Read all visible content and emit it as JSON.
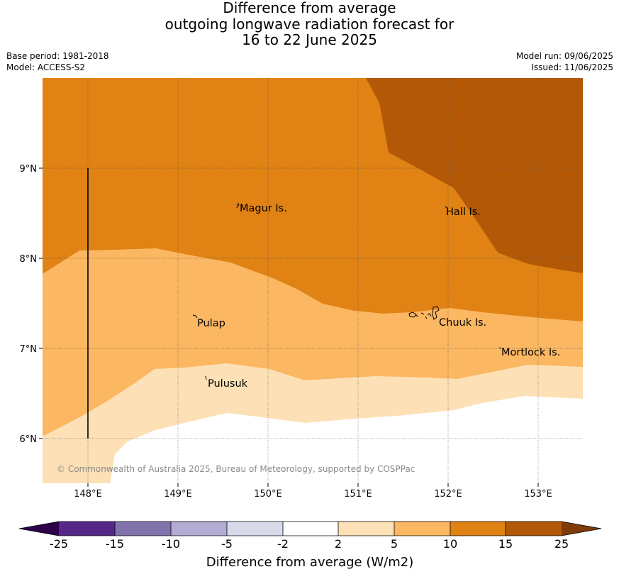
{
  "title": {
    "line1": "Difference from average",
    "line2": "outgoing longwave radiation forecast for",
    "line3": "16 to 22 June 2025"
  },
  "meta_left": {
    "base_period": "Base period: 1981-2018",
    "model": "Model: ACCESS-S2"
  },
  "meta_right": {
    "model_run": "Model run: 09/06/2025",
    "issued": "Issued: 11/06/2025"
  },
  "map": {
    "lon_range": [
      147.5,
      153.5
    ],
    "lat_range": [
      5.5,
      10.0
    ],
    "lon_ticks": [
      "148°E",
      "149°E",
      "150°E",
      "151°E",
      "152°E",
      "153°E"
    ],
    "lat_ticks": [
      "9°N",
      "8°N",
      "7°N",
      "6°N"
    ],
    "grid": true,
    "places": [
      "Magur Is.",
      "Hall Is.",
      "Pulap",
      "Chuuk Is.",
      "Mortlock Is.",
      "Pulusuk"
    ],
    "copyright": "© Commonwealth of Australia 2025, Bureau of Meteorology, supported by COSPPac",
    "category_colors": {
      "below_2": "#ffffff",
      "2_to_5": "#fde0b5",
      "5_to_10": "#fbb761",
      "10_to_15": "#e08214",
      "15_to_25": "#b35806"
    }
  },
  "colorbar": {
    "ticks": [
      "-25",
      "-15",
      "-10",
      "-5",
      "-2",
      "2",
      "5",
      "10",
      "15",
      "25"
    ],
    "colors": [
      "#2d004b",
      "#542788",
      "#8073ac",
      "#b2abd2",
      "#d8daeb",
      "#ffffff",
      "#fde0b5",
      "#fbb761",
      "#e08214",
      "#b35806",
      "#7f3b08"
    ],
    "label": "Difference from average (W/m2)"
  }
}
